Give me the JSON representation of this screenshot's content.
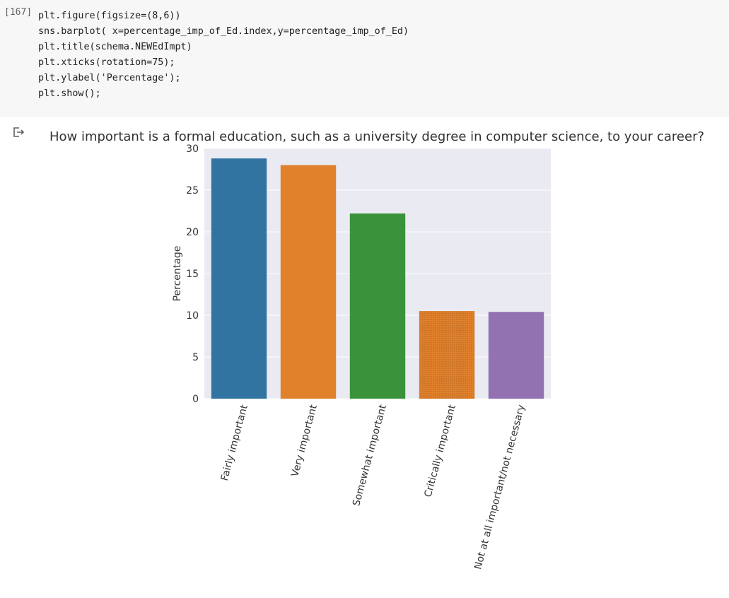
{
  "cell": {
    "execution_count": "[167]",
    "code_lines": [
      "plt.figure(figsize=(8,6))",
      "sns.barplot( x=percentage_imp_of_Ed.index,y=percentage_imp_of_Ed)",
      "plt.title(schema.NEWEdImpt)",
      "plt.xticks(rotation=75);",
      "plt.ylabel('Percentage');",
      "plt.show();"
    ]
  },
  "output": {
    "icon": "output-arrow-icon"
  },
  "chart_data": {
    "type": "bar",
    "title": "How important is a formal education, such as a university degree in computer science, to your career?",
    "xlabel": "",
    "ylabel": "Percentage",
    "categories": [
      "Fairly important",
      "Very important",
      "Somewhat important",
      "Critically important",
      "Not at all important/not necessary"
    ],
    "values": [
      28.8,
      28.0,
      22.2,
      10.5,
      10.4
    ],
    "colors": [
      "#3274a1",
      "#e1812c",
      "#3a923a",
      "#e1812c",
      "#9372b2"
    ],
    "ylim": [
      0,
      30
    ],
    "yticks": [
      0,
      5,
      10,
      15,
      20,
      25,
      30
    ],
    "ytick_labels": [
      "0",
      "5",
      "10",
      "15",
      "20",
      "25",
      "30"
    ],
    "grid": true,
    "legend": "none"
  }
}
